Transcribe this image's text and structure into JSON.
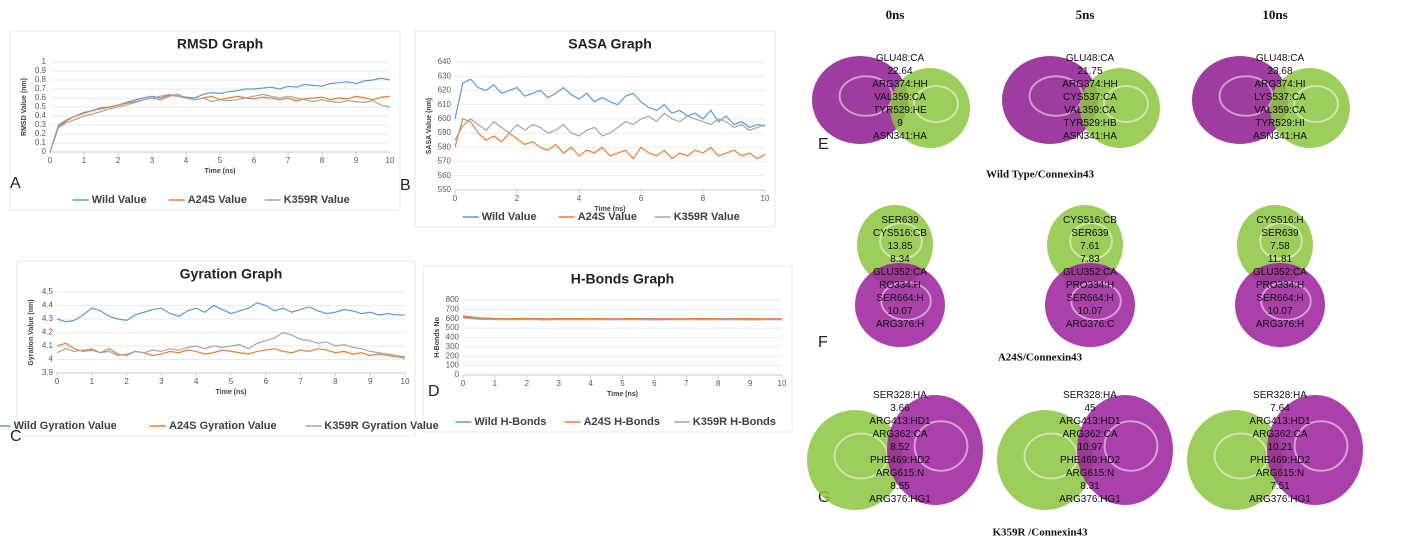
{
  "chart_data": [
    {
      "type": "line",
      "panel_label": "A",
      "title": "RMSD Graph",
      "x_label": "Time (ns)",
      "y_label": "RMSD Value (nm)",
      "x": [
        0,
        0.25,
        0.5,
        0.75,
        1,
        1.25,
        1.5,
        1.75,
        2,
        2.25,
        2.5,
        2.75,
        3,
        3.25,
        3.5,
        3.75,
        4,
        4.25,
        4.5,
        4.75,
        5,
        5.25,
        5.5,
        5.75,
        6,
        6.25,
        6.5,
        6.75,
        7,
        7.25,
        7.5,
        7.75,
        8,
        8.25,
        8.5,
        8.75,
        9,
        9.25,
        9.5,
        9.75,
        10
      ],
      "series": [
        {
          "name": "Wild Value",
          "color": "#5b9bd5",
          "values": [
            0,
            0.3,
            0.36,
            0.4,
            0.44,
            0.46,
            0.49,
            0.5,
            0.52,
            0.55,
            0.58,
            0.6,
            0.62,
            0.6,
            0.63,
            0.62,
            0.61,
            0.6,
            0.64,
            0.66,
            0.65,
            0.67,
            0.68,
            0.7,
            0.7,
            0.71,
            0.72,
            0.7,
            0.73,
            0.72,
            0.75,
            0.74,
            0.73,
            0.76,
            0.77,
            0.78,
            0.76,
            0.79,
            0.8,
            0.82,
            0.8
          ]
        },
        {
          "name": "A24S Value",
          "color": "#ed7d31",
          "values": [
            0,
            0.28,
            0.35,
            0.4,
            0.43,
            0.46,
            0.48,
            0.5,
            0.52,
            0.54,
            0.56,
            0.58,
            0.6,
            0.58,
            0.62,
            0.64,
            0.6,
            0.58,
            0.6,
            0.62,
            0.58,
            0.6,
            0.62,
            0.6,
            0.59,
            0.61,
            0.6,
            0.58,
            0.6,
            0.57,
            0.59,
            0.6,
            0.61,
            0.58,
            0.6,
            0.59,
            0.62,
            0.6,
            0.58,
            0.61,
            0.62
          ]
        },
        {
          "name": "K359R Value",
          "color": "#a5a5a5",
          "values": [
            0,
            0.27,
            0.33,
            0.36,
            0.4,
            0.42,
            0.45,
            0.48,
            0.5,
            0.52,
            0.55,
            0.58,
            0.6,
            0.62,
            0.64,
            0.62,
            0.6,
            0.58,
            0.6,
            0.56,
            0.58,
            0.57,
            0.58,
            0.6,
            0.62,
            0.64,
            0.62,
            0.6,
            0.62,
            0.6,
            0.58,
            0.56,
            0.58,
            0.56,
            0.55,
            0.57,
            0.56,
            0.55,
            0.57,
            0.52,
            0.5
          ]
        }
      ],
      "xlim": [
        0,
        10
      ],
      "xticks": [
        0,
        1,
        2,
        3,
        4,
        5,
        6,
        7,
        8,
        9,
        10
      ],
      "ylim": [
        0,
        1
      ],
      "yticks": [
        0,
        0.1,
        0.2,
        0.3,
        0.4,
        0.5,
        0.6,
        0.7,
        0.8,
        0.9,
        1
      ],
      "grid": true
    },
    {
      "type": "line",
      "panel_label": "B",
      "title": "SASA Graph",
      "x_label": "Time (ns)",
      "y_label": "SASA Value (nm)",
      "x": [
        0,
        0.25,
        0.5,
        0.75,
        1,
        1.25,
        1.5,
        1.75,
        2,
        2.25,
        2.5,
        2.75,
        3,
        3.25,
        3.5,
        3.75,
        4,
        4.25,
        4.5,
        4.75,
        5,
        5.25,
        5.5,
        5.75,
        6,
        6.25,
        6.5,
        6.75,
        7,
        7.25,
        7.5,
        7.75,
        8,
        8.25,
        8.5,
        8.75,
        9,
        9.25,
        9.5,
        9.75,
        10
      ],
      "series": [
        {
          "name": "Wild Value",
          "color": "#5b9bd5",
          "values": [
            600,
            625,
            628,
            622,
            620,
            624,
            618,
            620,
            622,
            616,
            618,
            620,
            615,
            618,
            622,
            617,
            614,
            618,
            612,
            615,
            612,
            610,
            616,
            618,
            612,
            608,
            606,
            610,
            604,
            606,
            602,
            604,
            600,
            606,
            598,
            602,
            596,
            598,
            594,
            596,
            595
          ]
        },
        {
          "name": "A24S Value",
          "color": "#ed7d31",
          "values": [
            580,
            600,
            598,
            590,
            585,
            588,
            584,
            590,
            586,
            582,
            584,
            580,
            578,
            582,
            576,
            580,
            574,
            578,
            576,
            580,
            574,
            576,
            578,
            572,
            580,
            576,
            574,
            578,
            572,
            576,
            574,
            578,
            576,
            580,
            574,
            576,
            578,
            574,
            576,
            572,
            575
          ]
        },
        {
          "name": "K359R Value",
          "color": "#a5a5a5",
          "values": [
            585,
            595,
            600,
            596,
            592,
            598,
            594,
            590,
            596,
            592,
            596,
            594,
            590,
            592,
            596,
            590,
            588,
            592,
            594,
            588,
            590,
            594,
            598,
            596,
            600,
            602,
            598,
            604,
            600,
            598,
            602,
            600,
            598,
            596,
            600,
            598,
            594,
            596,
            592,
            594,
            596
          ]
        }
      ],
      "xlim": [
        0,
        10
      ],
      "xticks": [
        0,
        2,
        4,
        6,
        8,
        10
      ],
      "ylim": [
        550,
        640
      ],
      "yticks": [
        550,
        560,
        570,
        580,
        590,
        600,
        610,
        620,
        630,
        640
      ],
      "grid": true
    },
    {
      "type": "line",
      "panel_label": "C",
      "title": "Gyration Graph",
      "x_label": "Time (ns)",
      "y_label": "Gyration Value (nm)",
      "x": [
        0,
        0.25,
        0.5,
        0.75,
        1,
        1.25,
        1.5,
        1.75,
        2,
        2.25,
        2.5,
        2.75,
        3,
        3.25,
        3.5,
        3.75,
        4,
        4.25,
        4.5,
        4.75,
        5,
        5.25,
        5.5,
        5.75,
        6,
        6.25,
        6.5,
        6.75,
        7,
        7.25,
        7.5,
        7.75,
        8,
        8.25,
        8.5,
        8.75,
        9,
        9.25,
        9.5,
        9.75,
        10
      ],
      "series": [
        {
          "name": "Wild Gyration Value",
          "color": "#5b9bd5",
          "values": [
            4.3,
            4.28,
            4.29,
            4.33,
            4.38,
            4.36,
            4.32,
            4.3,
            4.29,
            4.33,
            4.35,
            4.37,
            4.38,
            4.34,
            4.32,
            4.36,
            4.38,
            4.35,
            4.4,
            4.37,
            4.34,
            4.36,
            4.38,
            4.42,
            4.4,
            4.36,
            4.38,
            4.35,
            4.37,
            4.39,
            4.36,
            4.34,
            4.35,
            4.37,
            4.36,
            4.34,
            4.35,
            4.33,
            4.34,
            4.33,
            4.33
          ]
        },
        {
          "name": "A24S Gyration Value",
          "color": "#ed7d31",
          "values": [
            4.1,
            4.12,
            4.08,
            4.06,
            4.07,
            4.05,
            4.08,
            4.04,
            4.03,
            4.06,
            4.05,
            4.03,
            4.04,
            4.06,
            4.05,
            4.07,
            4.06,
            4.04,
            4.05,
            4.07,
            4.06,
            4.05,
            4.04,
            4.06,
            4.07,
            4.08,
            4.06,
            4.05,
            4.07,
            4.06,
            4.08,
            4.07,
            4.05,
            4.06,
            4.04,
            4.05,
            4.03,
            4.04,
            4.03,
            4.02,
            4.01
          ]
        },
        {
          "name": "K359R Gyration Value",
          "color": "#a5a5a5",
          "values": [
            4.05,
            4.08,
            4.06,
            4.07,
            4.08,
            4.05,
            4.06,
            4.03,
            4.04,
            4.06,
            4.05,
            4.07,
            4.06,
            4.08,
            4.07,
            4.09,
            4.1,
            4.08,
            4.1,
            4.09,
            4.1,
            4.11,
            4.08,
            4.12,
            4.14,
            4.16,
            4.2,
            4.18,
            4.15,
            4.14,
            4.12,
            4.13,
            4.1,
            4.11,
            4.09,
            4.08,
            4.06,
            4.05,
            4.04,
            4.03,
            4.02
          ]
        }
      ],
      "xlim": [
        0,
        10
      ],
      "xticks": [
        0,
        1,
        2,
        3,
        4,
        5,
        6,
        7,
        8,
        9,
        10
      ],
      "ylim": [
        3.9,
        4.5
      ],
      "yticks": [
        3.9,
        4,
        4.1,
        4.2,
        4.3,
        4.4,
        4.5
      ],
      "grid": true
    },
    {
      "type": "line",
      "panel_label": "D",
      "title": "H-Bonds Graph",
      "x_label": "Time (ns)",
      "y_label": "H-Bonds No",
      "x": [
        0,
        0.5,
        1,
        1.5,
        2,
        2.5,
        3,
        3.5,
        4,
        4.5,
        5,
        5.5,
        6,
        6.5,
        7,
        7.5,
        8,
        8.5,
        9,
        9.5,
        10
      ],
      "series": [
        {
          "name": "Wild H-Bonds",
          "color": "#5b9bd5",
          "values": [
            620,
            605,
            600,
            598,
            602,
            600,
            597,
            601,
            599,
            600,
            598,
            602,
            600,
            597,
            599,
            601,
            598,
            600,
            599,
            597,
            598
          ]
        },
        {
          "name": "A24S H-Bonds",
          "color": "#ed7d31",
          "values": [
            630,
            610,
            602,
            600,
            604,
            598,
            601,
            600,
            603,
            597,
            600,
            602,
            598,
            600,
            599,
            602,
            600,
            598,
            601,
            599,
            600
          ]
        },
        {
          "name": "K359R H-Bonds",
          "color": "#a5a5a5",
          "values": [
            610,
            595,
            592,
            590,
            593,
            588,
            591,
            590,
            592,
            589,
            590,
            591,
            588,
            590,
            592,
            589,
            591,
            590,
            588,
            590,
            589
          ]
        }
      ],
      "xlim": [
        0,
        10
      ],
      "xticks": [
        0,
        1,
        2,
        3,
        4,
        5,
        6,
        7,
        8,
        9,
        10
      ],
      "ylim": [
        0,
        800
      ],
      "yticks": [
        0,
        100,
        200,
        300,
        400,
        500,
        600,
        700,
        800
      ],
      "grid": true
    }
  ],
  "structure_panels": {
    "time_headers": [
      "0ns",
      "5ns",
      "10ns"
    ],
    "rows": [
      {
        "letter": "E",
        "caption": "Wild Type/Connexin43",
        "frames": [
          [
            "GLU48:CA",
            "22.64",
            "ARG374:HH",
            "VAL359:CA",
            "TYR529:HE",
            "9",
            "ASN341:HA"
          ],
          [
            "GLU48:CA",
            "21.75",
            "ARG374:HH",
            "CYS537:CA",
            "VAL359:CA",
            "TYR529:HB",
            "ASN341:HA"
          ],
          [
            "GLU48:CA",
            "23.68",
            "ARG374:HI",
            "LYS537:CA",
            "VAL359:CA",
            "TYR529:HI",
            "ASN341:HA"
          ]
        ]
      },
      {
        "letter": "F",
        "caption": "A24S/Connexin43",
        "frames": [
          [
            "SER639",
            "CYS516:CB",
            "13.85",
            "8.34",
            "GLU352:CA",
            "RO334:H",
            "SER664:H",
            "10.07",
            "ARG376:H"
          ],
          [
            "CYS516:CB",
            "SER639",
            "7.61",
            "7.83",
            "GLU352:CA",
            "PRO334:H",
            "SER664:H",
            "10.07",
            "ARG376:C"
          ],
          [
            "CYS516:H",
            "SER639",
            "7.58",
            "11.81",
            "GLU352:CA",
            "PRO334:H",
            "SER664:H",
            "10.07",
            "ARG376:H"
          ]
        ]
      },
      {
        "letter": "G",
        "caption": "K359R /Connexin43",
        "frames": [
          [
            "SER328:HA",
            "3.66",
            "ARG413:HD1",
            "ARG362:CA",
            "8.52",
            "PHE469:HD2",
            "ARG615:N",
            "8.55",
            "ARG376:HG1"
          ],
          [
            "SER328:HA",
            "45",
            "ARG413:HD1",
            "ARG362:CA",
            "10.97",
            "PHE469:HD2",
            "ARG615:N",
            "8.31",
            "ARG376:HG1"
          ],
          [
            "SER328:HA",
            "7.64",
            "ARG413:HD1",
            "ARG362:CA",
            "10.21",
            "PHE469:HD2",
            "ARG615:N",
            "7.51",
            "ARG376:HG1"
          ]
        ]
      }
    ]
  }
}
